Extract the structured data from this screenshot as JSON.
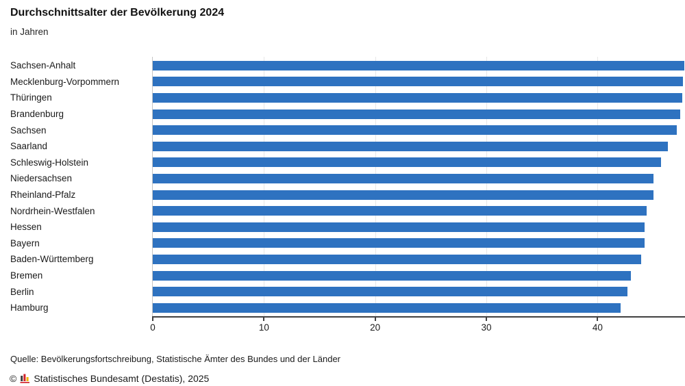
{
  "header": {
    "title": "Durchschnittsalter der Bevölkerung 2024",
    "subtitle": "in Jahren"
  },
  "chart_data": {
    "type": "bar",
    "orientation": "horizontal",
    "title": "Durchschnittsalter der Bevölkerung 2024",
    "unit_label": "in Jahren",
    "categories": [
      "Sachsen-Anhalt",
      "Mecklenburg-Vorpommern",
      "Thüringen",
      "Brandenburg",
      "Sachsen",
      "Saarland",
      "Schleswig-Holstein",
      "Niedersachsen",
      "Rheinland-Pfalz",
      "Nordrhein-Westfalen",
      "Hessen",
      "Bayern",
      "Baden-Württemberg",
      "Bremen",
      "Berlin",
      "Hamburg"
    ],
    "values": [
      47.9,
      47.7,
      47.6,
      47.4,
      47.1,
      46.3,
      45.7,
      45.0,
      45.0,
      44.4,
      44.2,
      44.2,
      43.9,
      43.0,
      42.7,
      42.1
    ],
    "xlabel": "",
    "ylabel": "",
    "xlim": [
      0,
      47.8
    ],
    "xticks": [
      0,
      10,
      20,
      30,
      40
    ],
    "grid": "vertical gridlines at x ticks, light gray, behind bars",
    "legend": "none",
    "bar_color": "#2e72c0",
    "axis_color": "#404040",
    "gridline_color": "#e7e7e7"
  },
  "footer": {
    "source": "Quelle: Bevölkerungsfortschreibung, Statistische Ämter des Bundes und der Länder",
    "copyright_symbol": "©",
    "copyright": "Statistisches Bundesamt (Destatis), 2025",
    "logo_icon": "destatis-bars-icon",
    "logo_colors": {
      "dark": "#3c3c3c",
      "red": "#d2232a",
      "yellow": "#f0b400"
    }
  }
}
